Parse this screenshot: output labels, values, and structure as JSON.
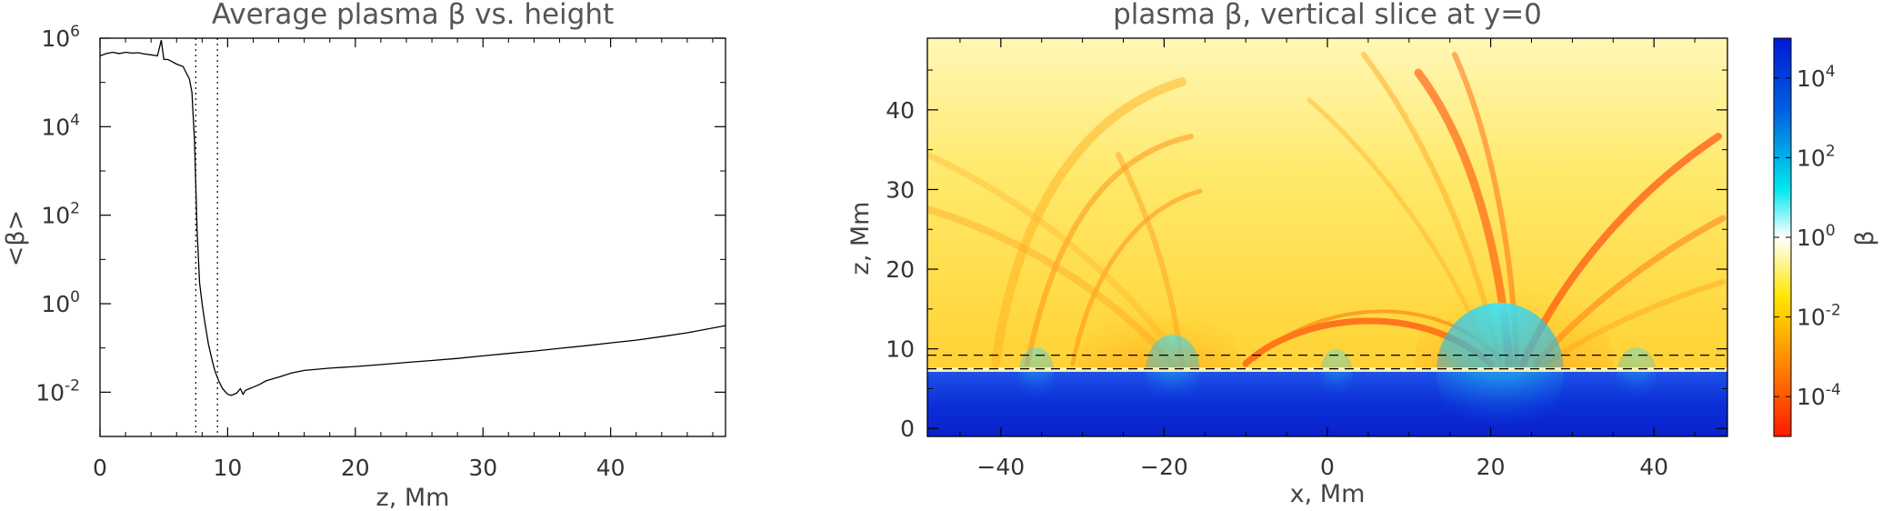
{
  "chart_data": [
    {
      "type": "line",
      "title": "Average plasma β vs. height",
      "xlabel": "z, Mm",
      "ylabel": "<β>",
      "xlim": [
        0,
        49
      ],
      "ylim": [
        0.001,
        1000000
      ],
      "yscale": "log",
      "xticks": [
        "0",
        "10",
        "20",
        "30",
        "40"
      ],
      "yticks": [
        {
          "base": "10",
          "exp": "6"
        },
        {
          "base": "10",
          "exp": "4"
        },
        {
          "base": "10",
          "exp": "2"
        },
        {
          "base": "10",
          "exp": "0"
        },
        {
          "base": "10",
          "exp": "-2"
        }
      ],
      "reference_lines_x": [
        7.5,
        9.2
      ],
      "grid": false,
      "series": [
        {
          "x": [
            0,
            0.5,
            1,
            1.5,
            2,
            2.5,
            3,
            3.5,
            4,
            4.5,
            4.8,
            5,
            5.3,
            5.6,
            6,
            6.5,
            7,
            7.2,
            7.4,
            7.6,
            7.8,
            8,
            8.2,
            8.5,
            8.8,
            9,
            9.3,
            9.6,
            10,
            10.3,
            10.7,
            11,
            11.2,
            11.4,
            11.7,
            12,
            12.5,
            13,
            13.5,
            14,
            15,
            16,
            17,
            18,
            20,
            22,
            24,
            26,
            28,
            30,
            32,
            34,
            36,
            38,
            40,
            42,
            44,
            46,
            49
          ],
          "y": [
            400000,
            450000,
            480000,
            450000,
            480000,
            460000,
            470000,
            440000,
            420000,
            400000,
            900000,
            330000,
            330000,
            300000,
            260000,
            230000,
            120000,
            60000,
            5000,
            50,
            3,
            1,
            0.4,
            0.12,
            0.05,
            0.03,
            0.018,
            0.012,
            0.009,
            0.0085,
            0.0095,
            0.012,
            0.009,
            0.011,
            0.012,
            0.013,
            0.015,
            0.018,
            0.02,
            0.022,
            0.027,
            0.031,
            0.033,
            0.035,
            0.038,
            0.042,
            0.047,
            0.052,
            0.058,
            0.066,
            0.075,
            0.085,
            0.098,
            0.112,
            0.13,
            0.15,
            0.18,
            0.22,
            0.32
          ]
        }
      ]
    },
    {
      "type": "heatmap",
      "title": "plasma β, vertical slice at y=0",
      "xlabel": "x, Mm",
      "ylabel": "z, Mm",
      "xlim": [
        -49,
        49
      ],
      "ylim": [
        -1,
        49
      ],
      "xticks": [
        "−40",
        "−20",
        "0",
        "20",
        "40"
      ],
      "yticks": [
        "0",
        "10",
        "20",
        "30",
        "40"
      ],
      "reference_lines_z": [
        7.5,
        9.2
      ],
      "colorbar": {
        "label": "β",
        "scale": "log",
        "range": [
          1e-05,
          100000
        ],
        "ticks": [
          {
            "base": "10",
            "exp": "4"
          },
          {
            "base": "10",
            "exp": "2"
          },
          {
            "base": "10",
            "exp": "0"
          },
          {
            "base": "10",
            "exp": "-2"
          },
          {
            "base": "10",
            "exp": "-4"
          }
        ],
        "colormap": [
          "#ff1a00",
          "#ff7a00",
          "#ffe600",
          "#ffffff",
          "#00e8ee",
          "#0060e0",
          "#0018d8"
        ]
      }
    }
  ]
}
